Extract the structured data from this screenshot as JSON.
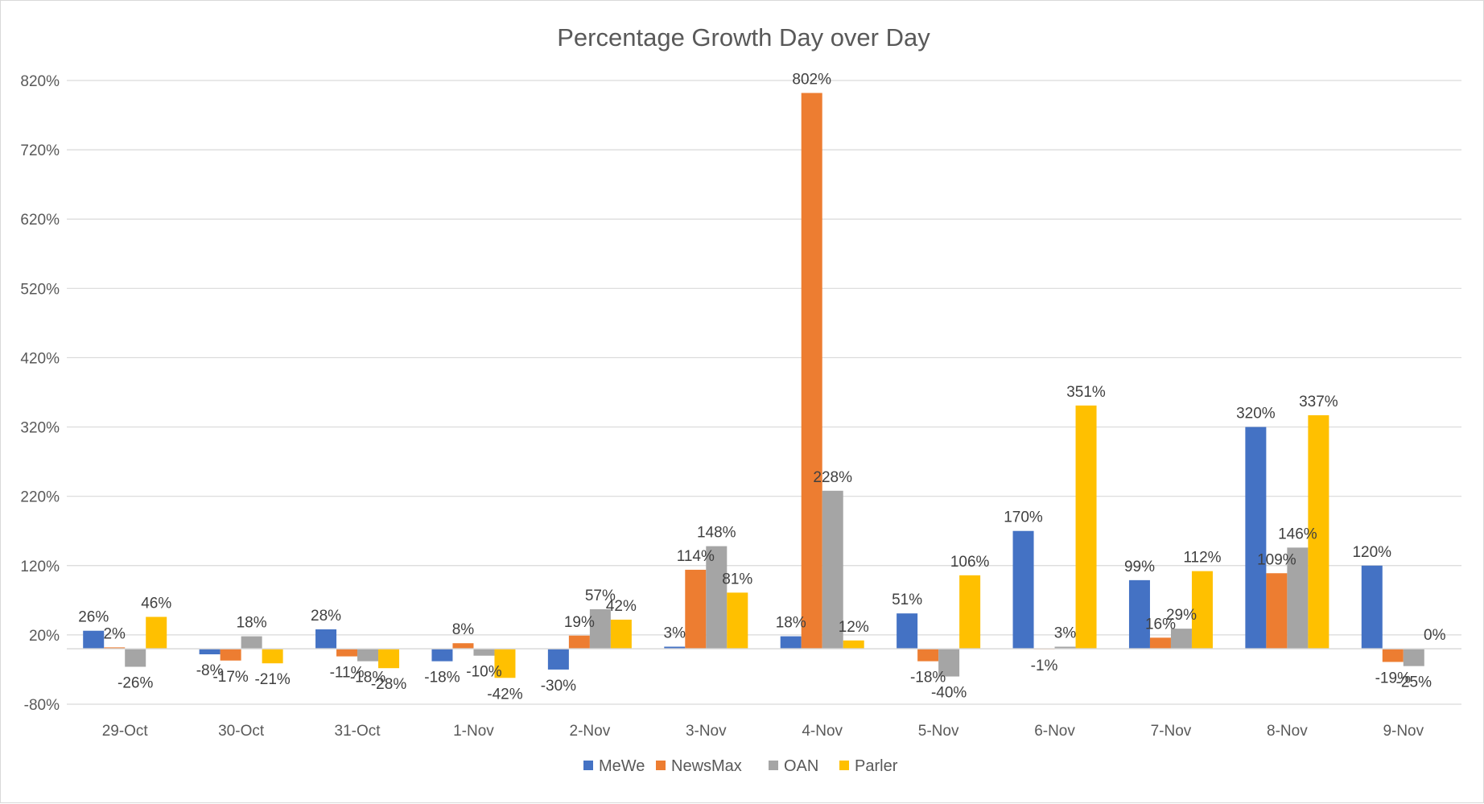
{
  "chart_data": {
    "type": "bar",
    "title": "Percentage Growth Day over Day",
    "xlabel": "",
    "ylabel": "",
    "categories": [
      "29-Oct",
      "30-Oct",
      "31-Oct",
      "1-Nov",
      "2-Nov",
      "3-Nov",
      "4-Nov",
      "5-Nov",
      "6-Nov",
      "7-Nov",
      "8-Nov",
      "9-Nov"
    ],
    "y_ticks": [
      -80,
      20,
      120,
      220,
      320,
      420,
      520,
      620,
      720,
      820
    ],
    "y_tick_labels": [
      "-80%",
      "20%",
      "120%",
      "220%",
      "320%",
      "420%",
      "520%",
      "620%",
      "720%",
      "820%"
    ],
    "ylim": [
      -80,
      820
    ],
    "value_unit": "%",
    "grid": true,
    "legend_position": "bottom",
    "series": [
      {
        "name": "MeWe",
        "color": "#4472C4",
        "values": [
          26,
          -8,
          28,
          -18,
          -30,
          3,
          18,
          51,
          170,
          99,
          320,
          120
        ]
      },
      {
        "name": "NewsMax",
        "color": "#ED7D31",
        "values": [
          2,
          -17,
          -11,
          8,
          19,
          114,
          802,
          -18,
          -1,
          16,
          109,
          -19
        ]
      },
      {
        "name": "OAN",
        "color": "#A5A5A5",
        "values": [
          -26,
          18,
          -18,
          -10,
          57,
          148,
          228,
          -40,
          3,
          29,
          146,
          -25
        ]
      },
      {
        "name": "Parler",
        "color": "#FFC000",
        "values": [
          46,
          -21,
          -28,
          -42,
          42,
          81,
          12,
          106,
          351,
          112,
          337,
          0
        ]
      }
    ]
  }
}
